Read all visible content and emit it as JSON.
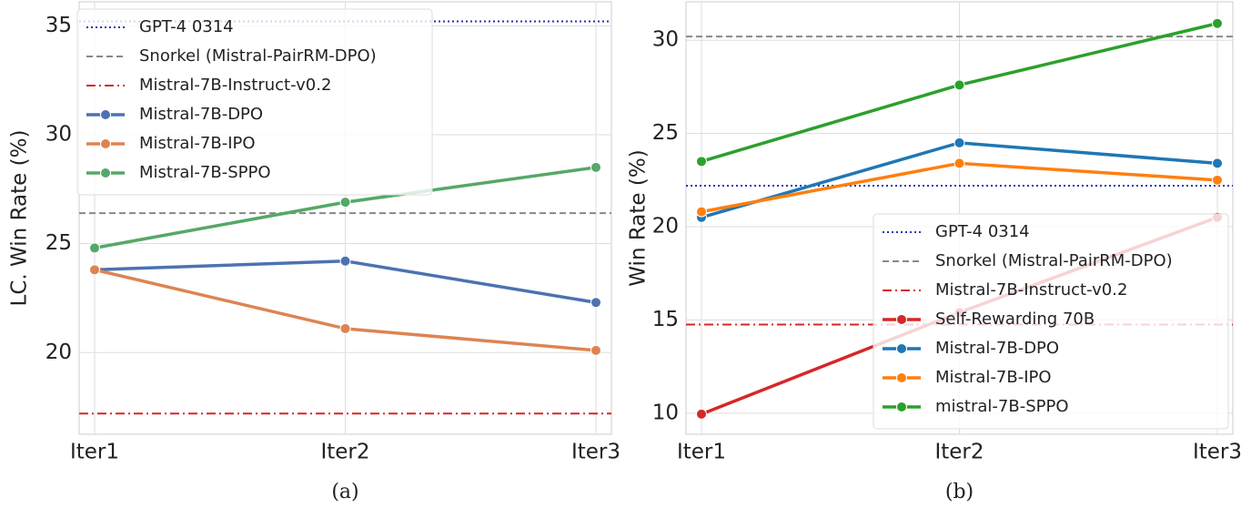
{
  "chart_data": [
    {
      "type": "line",
      "caption": "(a)",
      "ylabel": "LC. Win Rate (%)",
      "categories": [
        "Iter1",
        "Iter2",
        "Iter3"
      ],
      "ylim": [
        16.25,
        36.1
      ],
      "yticks": [
        20,
        25,
        30,
        35
      ],
      "grid": true,
      "legend": "upper left",
      "hlines": [
        {
          "name": "GPT-4 0314",
          "color": "#2233bb",
          "style": "dotted",
          "value": 35.2
        },
        {
          "name": "Snorkel (Mistral-PairRM-DPO)",
          "color": "#888888",
          "style": "dashed",
          "value": 26.4
        },
        {
          "name": "Mistral-7B-Instruct-v0.2",
          "color": "#d62728",
          "style": "dashdot",
          "value": 17.2
        }
      ],
      "series": [
        {
          "name": "Mistral-7B-DPO",
          "color": "#4c72b0",
          "values": [
            23.8,
            24.2,
            22.3
          ]
        },
        {
          "name": "Mistral-7B-IPO",
          "color": "#dd8452",
          "values": [
            23.8,
            21.1,
            20.1
          ]
        },
        {
          "name": "Mistral-7B-SPPO",
          "color": "#55a868",
          "values": [
            24.8,
            26.9,
            28.5
          ]
        }
      ]
    },
    {
      "type": "line",
      "caption": "(b)",
      "ylabel": "Win Rate (%)",
      "categories": [
        "Iter1",
        "Iter2",
        "Iter3"
      ],
      "ylim": [
        8.87,
        32.06
      ],
      "yticks": [
        10,
        15,
        20,
        25,
        30
      ],
      "grid": true,
      "legend": "lower right",
      "hlines": [
        {
          "name": "GPT-4 0314",
          "color": "#2233bb",
          "style": "dotted",
          "value": 22.2
        },
        {
          "name": "Snorkel (Mistral-PairRM-DPO)",
          "color": "#888888",
          "style": "dashed",
          "value": 30.2
        },
        {
          "name": "Mistral-7B-Instruct-v0.2",
          "color": "#d62728",
          "style": "dashdot",
          "value": 14.75
        }
      ],
      "series": [
        {
          "name": "Self-Rewarding 70B",
          "color": "#d62728",
          "values": [
            9.95,
            15.4,
            20.5
          ]
        },
        {
          "name": "Mistral-7B-DPO",
          "color": "#1f77b4",
          "values": [
            20.5,
            24.5,
            23.4
          ]
        },
        {
          "name": "Mistral-7B-IPO",
          "color": "#ff7f0e",
          "values": [
            20.8,
            23.4,
            22.5
          ]
        },
        {
          "name": "mistral-7B-SPPO",
          "color": "#2ca02c",
          "values": [
            23.5,
            27.6,
            30.9
          ]
        }
      ]
    }
  ]
}
